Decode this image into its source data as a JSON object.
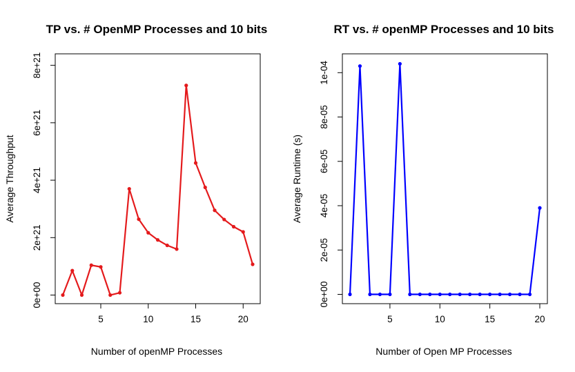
{
  "chart_data": [
    {
      "type": "line",
      "title": "TP vs. # OpenMP Processes and 10 bits",
      "xlabel": "Number of openMP Processes",
      "ylabel": "Average Throughput",
      "xlim": [
        0.2,
        21.8
      ],
      "ylim": [
        -3e+20,
        8.4e+21
      ],
      "x_ticks": [
        5,
        10,
        15,
        20
      ],
      "x_tick_labels": [
        "5",
        "10",
        "15",
        "20"
      ],
      "y_ticks": [
        0,
        2e+21,
        4e+21,
        6e+21,
        8e+21
      ],
      "y_tick_labels": [
        "0e+00",
        "2e+21",
        "4e+21",
        "6e+21",
        "8e+21"
      ],
      "color": "#e41a1c",
      "grid": false,
      "x": [
        1,
        2,
        3,
        4,
        5,
        6,
        7,
        8,
        9,
        10,
        11,
        12,
        13,
        14,
        15,
        16,
        17,
        18,
        19,
        20,
        21
      ],
      "y": [
        0,
        8.5e+20,
        0,
        1.04e+21,
        9.8e+20,
        0,
        8e+19,
        3.7e+21,
        2.64e+21,
        2.17e+21,
        1.92e+21,
        1.73e+21,
        1.6e+21,
        7.3e+21,
        4.6e+21,
        3.75e+21,
        2.95e+21,
        2.63e+21,
        2.38e+21,
        2.2e+21,
        1.07e+21
      ]
    },
    {
      "type": "line",
      "title": "RT vs. # openMP Processes and 10 bits",
      "xlabel": "Number of Open MP Processes",
      "ylabel": "Average Runtime (s)",
      "xlim": [
        0.24,
        20.76
      ],
      "ylim": [
        -4.2e-06,
        0.0001085
      ],
      "x_ticks": [
        5,
        10,
        15,
        20
      ],
      "x_tick_labels": [
        "5",
        "10",
        "15",
        "20"
      ],
      "y_ticks": [
        0,
        2e-05,
        4e-05,
        6e-05,
        8e-05,
        0.0001
      ],
      "y_tick_labels": [
        "0e+00",
        "2e-05",
        "4e-05",
        "6e-05",
        "8e-05",
        "1e-04"
      ],
      "color": "#0000ff",
      "grid": false,
      "x": [
        1,
        2,
        3,
        4,
        5,
        6,
        7,
        8,
        9,
        10,
        11,
        12,
        13,
        14,
        15,
        16,
        17,
        18,
        19,
        20
      ],
      "y": [
        0,
        0.000103,
        0,
        0,
        0,
        0.000104,
        0,
        0,
        0,
        0,
        0,
        0,
        0,
        0,
        0,
        0,
        0,
        0,
        0,
        3.9e-05
      ]
    }
  ]
}
